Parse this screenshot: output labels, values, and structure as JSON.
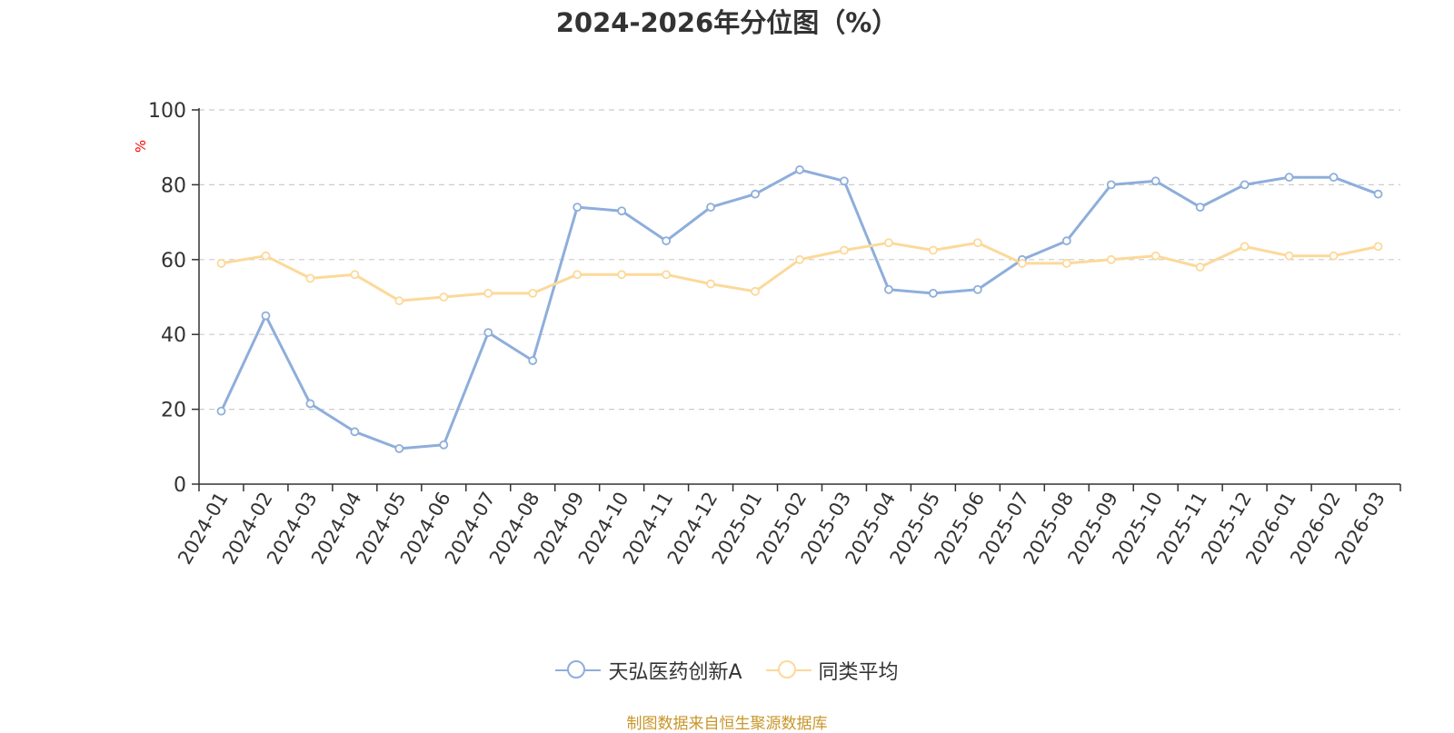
{
  "chart_data": {
    "type": "line",
    "title": "2024-2026年分位图（%）",
    "ylabel": "%",
    "xlabel": "",
    "ylim": [
      0,
      100
    ],
    "y_ticks": [
      0,
      20,
      40,
      60,
      80,
      100
    ],
    "grid": true,
    "legend_position": "bottom",
    "categories": [
      "2024-01",
      "2024-02",
      "2024-03",
      "2024-04",
      "2024-05",
      "2024-06",
      "2024-07",
      "2024-08",
      "2024-09",
      "2024-10",
      "2024-11",
      "2024-12",
      "2025-01",
      "2025-02",
      "2025-03",
      "2025-04",
      "2025-05",
      "2025-06",
      "2025-07",
      "2025-08",
      "2025-09",
      "2025-10",
      "2025-11",
      "2025-12",
      "2026-01",
      "2026-02",
      "2026-03"
    ],
    "series": [
      {
        "name": "天弘医药创新A",
        "color": "#8eaedb",
        "values": [
          19.5,
          45,
          21.5,
          14,
          9.5,
          10.5,
          40.5,
          33,
          74,
          73,
          65,
          74,
          77.5,
          84,
          81,
          52,
          51,
          52,
          60,
          65,
          80,
          81,
          74,
          80,
          82,
          82,
          77.5
        ]
      },
      {
        "name": "同类平均",
        "color": "#fcd99a",
        "values": [
          59,
          61,
          55,
          56,
          49,
          50,
          51,
          51,
          56,
          56,
          56,
          53.5,
          51.5,
          60,
          62.5,
          64.5,
          62.5,
          64.5,
          59,
          59,
          60,
          61,
          58,
          63.5,
          61,
          61,
          63.5
        ]
      }
    ]
  },
  "source_note": "制图数据来自恒生聚源数据库",
  "colors": {
    "axis": "#333333",
    "grid": "#cccccc",
    "ylabel": "#ff0000",
    "title": "#333333"
  }
}
